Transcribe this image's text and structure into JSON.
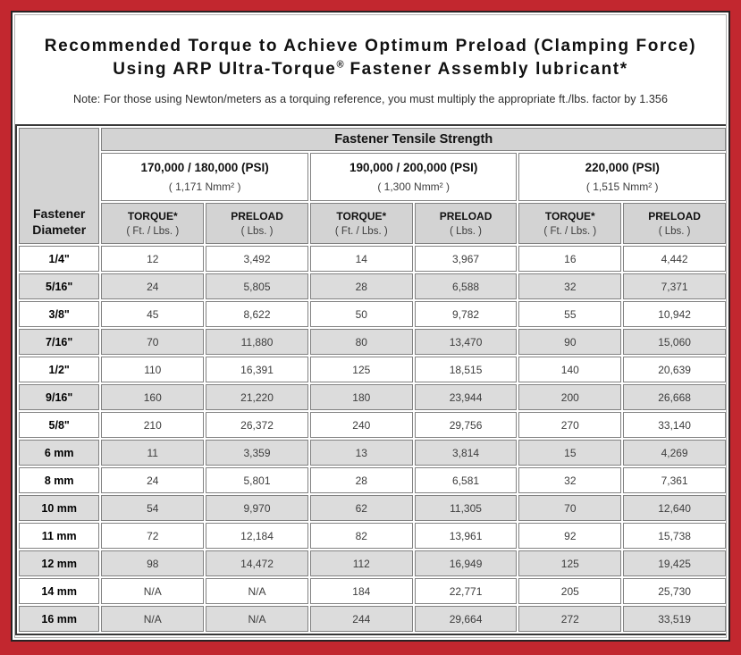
{
  "colors": {
    "frame_red": "#C2272F",
    "frame_border": "#2A2224",
    "inner_line": "#B3B3B3",
    "header_bg": "#D3D3D3",
    "row_shaded": "#DCDCDC",
    "cell_border": "#828282",
    "text_dark": "#3D3D3D"
  },
  "title": {
    "line1": "Recommended Torque to Achieve Optimum Preload (Clamping Force)",
    "line2_main": "Using ARP Ultra-Torque",
    "line2_reg": "®",
    "line2_rest": " Fastener Assembly lubricant*",
    "note": "Note: For those using Newton/meters as a torquing reference, you must multiply the appropriate ft./lbs. factor by 1.356"
  },
  "table": {
    "corner_header": "Fastener Diameter",
    "tensile_header": "Fastener Tensile Strength",
    "groups": [
      {
        "psi": "170,000 / 180,000 (PSI)",
        "nmm": "( 1,171 Nmm² )"
      },
      {
        "psi": "190,000 / 200,000 (PSI)",
        "nmm": "( 1,300 Nmm² )"
      },
      {
        "psi": "220,000 (PSI)",
        "nmm": "( 1,515 Nmm² )"
      }
    ],
    "subcols": [
      {
        "label": "TORQUE*",
        "unit": "( Ft. / Lbs. )"
      },
      {
        "label": "PRELOAD",
        "unit": "( Lbs. )"
      }
    ],
    "rows": [
      {
        "diameter": "1/4\"",
        "values": [
          "12",
          "3,492",
          "14",
          "3,967",
          "16",
          "4,442"
        ]
      },
      {
        "diameter": "5/16\"",
        "values": [
          "24",
          "5,805",
          "28",
          "6,588",
          "32",
          "7,371"
        ]
      },
      {
        "diameter": "3/8\"",
        "values": [
          "45",
          "8,622",
          "50",
          "9,782",
          "55",
          "10,942"
        ]
      },
      {
        "diameter": "7/16\"",
        "values": [
          "70",
          "11,880",
          "80",
          "13,470",
          "90",
          "15,060"
        ]
      },
      {
        "diameter": "1/2\"",
        "values": [
          "110",
          "16,391",
          "125",
          "18,515",
          "140",
          "20,639"
        ]
      },
      {
        "diameter": "9/16\"",
        "values": [
          "160",
          "21,220",
          "180",
          "23,944",
          "200",
          "26,668"
        ]
      },
      {
        "diameter": "5/8\"",
        "values": [
          "210",
          "26,372",
          "240",
          "29,756",
          "270",
          "33,140"
        ]
      },
      {
        "diameter": "6 mm",
        "values": [
          "11",
          "3,359",
          "13",
          "3,814",
          "15",
          "4,269"
        ]
      },
      {
        "diameter": "8 mm",
        "values": [
          "24",
          "5,801",
          "28",
          "6,581",
          "32",
          "7,361"
        ]
      },
      {
        "diameter": "10 mm",
        "values": [
          "54",
          "9,970",
          "62",
          "11,305",
          "70",
          "12,640"
        ]
      },
      {
        "diameter": "11 mm",
        "values": [
          "72",
          "12,184",
          "82",
          "13,961",
          "92",
          "15,738"
        ]
      },
      {
        "diameter": "12 mm",
        "values": [
          "98",
          "14,472",
          "112",
          "16,949",
          "125",
          "19,425"
        ]
      },
      {
        "diameter": "14 mm",
        "values": [
          "N/A",
          "N/A",
          "184",
          "22,771",
          "205",
          "25,730"
        ]
      },
      {
        "diameter": "16 mm",
        "values": [
          "N/A",
          "N/A",
          "244",
          "29,664",
          "272",
          "33,519"
        ]
      }
    ]
  }
}
